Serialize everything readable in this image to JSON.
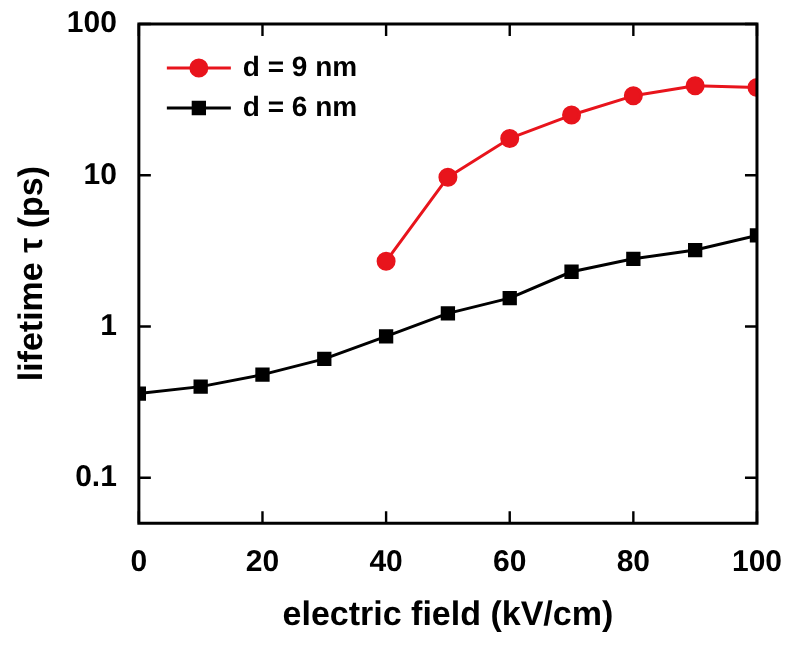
{
  "chart_data": {
    "type": "line",
    "xlabel": "electric field (kV/cm)",
    "ylabel": "lifetime τ (ps)",
    "x": [
      0,
      10,
      20,
      30,
      40,
      50,
      60,
      70,
      80,
      90,
      100
    ],
    "series": [
      {
        "name": "d = 9 nm",
        "color": "#e8141c",
        "marker": "circle",
        "values": [
          null,
          null,
          null,
          null,
          2.7,
          9.7,
          17.5,
          25,
          33.5,
          39,
          38
        ]
      },
      {
        "name": "d = 6 nm",
        "color": "#000000",
        "marker": "square",
        "values": [
          0.36,
          0.4,
          0.48,
          0.61,
          0.86,
          1.22,
          1.54,
          2.3,
          2.8,
          3.2,
          4.0
        ]
      }
    ],
    "log": "y",
    "xlim": [
      0,
      100
    ],
    "xticks": [
      0,
      20,
      40,
      60,
      80,
      100
    ],
    "ylim": [
      0.05,
      100
    ],
    "yticks": [
      0.1,
      1,
      10,
      100
    ],
    "grid": false,
    "legend": "top left"
  }
}
